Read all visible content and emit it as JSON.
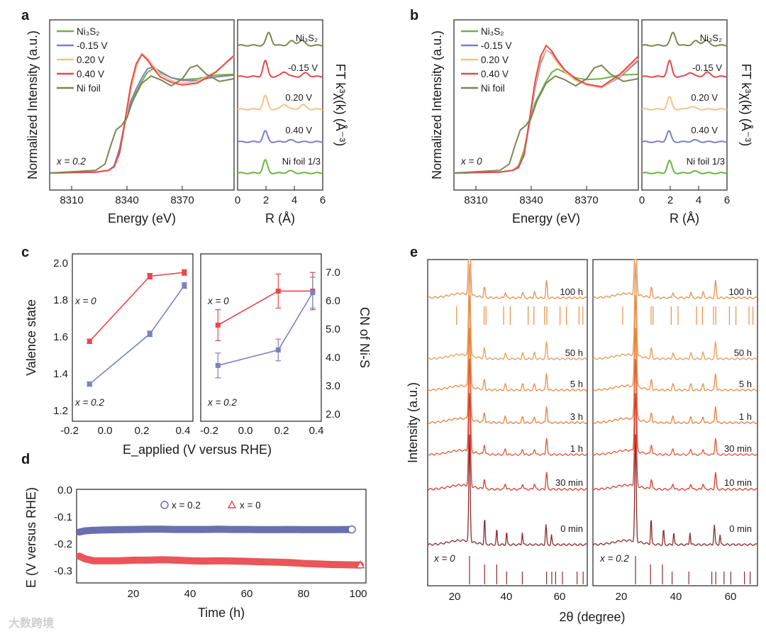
{
  "panel_labels": {
    "a": "a",
    "b": "b",
    "c": "c",
    "d": "d",
    "e": "e"
  },
  "watermark": "大数跨境",
  "chart_data": [
    {
      "id": "a_xanes",
      "type": "line",
      "xlabel": "Energy (eV)",
      "ylabel": "Normalized Intensity (a.u.)",
      "xticks": [
        "8310",
        "8340",
        "8370"
      ],
      "xlim": [
        8300,
        8400
      ],
      "annotation": "x = 0.2",
      "series": [
        {
          "name": "Ni₃S₂",
          "color": "#6cb43f",
          "x": [
            8300,
            8325,
            8332,
            8335,
            8338,
            8341,
            8344,
            8347,
            8350,
            8353,
            8356,
            8360,
            8366,
            8372,
            8380,
            8390,
            8400
          ],
          "y": [
            0.0,
            0.01,
            0.03,
            0.08,
            0.25,
            0.55,
            0.78,
            0.9,
            1.02,
            1.12,
            1.16,
            1.12,
            1.06,
            1.04,
            1.05,
            1.09,
            1.1
          ]
        },
        {
          "name": "-0.15 V",
          "color": "#7b80c2",
          "x": [
            8300,
            8325,
            8332,
            8335,
            8338,
            8341,
            8344,
            8347,
            8350,
            8353,
            8356,
            8360,
            8366,
            8372,
            8380,
            8390,
            8400
          ],
          "y": [
            0.0,
            0.01,
            0.03,
            0.08,
            0.28,
            0.58,
            0.8,
            0.94,
            1.06,
            1.16,
            1.18,
            1.13,
            1.06,
            1.03,
            1.03,
            1.07,
            1.09
          ]
        },
        {
          "name": "0.20 V",
          "color": "#f5c28a",
          "x": [
            8300,
            8325,
            8332,
            8335,
            8338,
            8341,
            8344,
            8347,
            8350,
            8353,
            8356,
            8360,
            8366,
            8372,
            8380,
            8390,
            8400
          ],
          "y": [
            0.0,
            0.01,
            0.03,
            0.07,
            0.22,
            0.56,
            0.92,
            1.18,
            1.33,
            1.28,
            1.2,
            1.1,
            1.03,
            1.0,
            1.02,
            1.13,
            1.3
          ]
        },
        {
          "name": "0.40 V",
          "color": "#e8474c",
          "x": [
            8300,
            8325,
            8332,
            8335,
            8338,
            8341,
            8344,
            8347,
            8350,
            8353,
            8356,
            8360,
            8366,
            8372,
            8380,
            8390,
            8400
          ],
          "y": [
            0.0,
            0.01,
            0.03,
            0.07,
            0.23,
            0.6,
            0.98,
            1.22,
            1.32,
            1.26,
            1.17,
            1.07,
            1.01,
            0.98,
            1.0,
            1.12,
            1.31
          ]
        },
        {
          "name": "Ni foil",
          "color": "#7f8451",
          "x": [
            8300,
            8325,
            8330,
            8333,
            8336,
            8339,
            8342,
            8345,
            8350,
            8355,
            8360,
            8366,
            8372,
            8376,
            8380,
            8385,
            8392,
            8400
          ],
          "y": [
            0.0,
            0.03,
            0.1,
            0.3,
            0.48,
            0.53,
            0.62,
            0.8,
            1.0,
            1.08,
            1.04,
            0.97,
            1.05,
            1.17,
            1.2,
            1.1,
            1.02,
            1.05
          ]
        }
      ]
    },
    {
      "id": "a_ft",
      "type": "line",
      "xlabel": "R (Å)",
      "ylabel": "FT k³χ(k) (Å⁻³)",
      "xticks": [
        "0",
        "2",
        "4",
        "6"
      ],
      "xlim": [
        0,
        6
      ],
      "series": [
        {
          "name": "Ni₃S₂",
          "color": "#6cb43f",
          "offset": 4,
          "peaks": [
            [
              1.95,
              0.9,
              0.22
            ],
            [
              3.7,
              0.15,
              0.3
            ]
          ]
        },
        {
          "name": "-0.15 V",
          "color": "#7b80c2",
          "offset": 3,
          "peaks": [
            [
              1.95,
              0.75,
              0.22
            ],
            [
              3.7,
              0.12,
              0.3
            ]
          ]
        },
        {
          "name": "0.20 V",
          "color": "#f5c28a",
          "offset": 2,
          "peaks": [
            [
              1.95,
              0.95,
              0.22
            ],
            [
              3.3,
              0.35,
              0.3
            ],
            [
              4.6,
              0.3,
              0.3
            ]
          ]
        },
        {
          "name": "0.40 V",
          "color": "#e8474c",
          "offset": 1,
          "peaks": [
            [
              1.95,
              1.1,
              0.22
            ],
            [
              3.3,
              0.35,
              0.3
            ],
            [
              4.8,
              0.25,
              0.3
            ]
          ]
        },
        {
          "name": "Ni foil 1/3",
          "color": "#7f8451",
          "offset": 0,
          "peaks": [
            [
              2.2,
              0.9,
              0.25
            ],
            [
              3.8,
              0.3,
              0.3
            ],
            [
              4.5,
              0.35,
              0.3
            ]
          ]
        }
      ]
    },
    {
      "id": "b_xanes",
      "type": "line",
      "xlabel": "Energy (eV)",
      "ylabel": "Normalized Intensity (a.u.)",
      "xticks": [
        "8310",
        "8340",
        "8370"
      ],
      "xlim": [
        8300,
        8400
      ],
      "annotation": "x = 0",
      "series": [
        {
          "name": "Ni₃S₂",
          "color": "#6cb43f",
          "x": [
            8300,
            8325,
            8332,
            8335,
            8338,
            8341,
            8344,
            8347,
            8350,
            8353,
            8356,
            8360,
            8366,
            8372,
            8380,
            8390,
            8400
          ],
          "y": [
            0.0,
            0.01,
            0.03,
            0.08,
            0.25,
            0.55,
            0.78,
            0.9,
            1.02,
            1.12,
            1.16,
            1.12,
            1.06,
            1.04,
            1.05,
            1.09,
            1.1
          ]
        },
        {
          "name": "-0.15 V",
          "color": "#7b80c2",
          "x": [
            8300,
            8325,
            8332,
            8335,
            8338,
            8341,
            8344,
            8347,
            8350,
            8353,
            8356,
            8360,
            8366,
            8372,
            8380,
            8390,
            8400
          ],
          "y": [
            0.0,
            0.01,
            0.03,
            0.06,
            0.2,
            0.55,
            0.95,
            1.22,
            1.37,
            1.33,
            1.24,
            1.14,
            1.04,
            0.98,
            0.95,
            1.07,
            1.25
          ]
        },
        {
          "name": "0.20 V",
          "color": "#f5c28a",
          "x": [
            8300,
            8325,
            8332,
            8335,
            8338,
            8341,
            8344,
            8347,
            8350,
            8353,
            8356,
            8360,
            8366,
            8372,
            8380,
            8390,
            8400
          ],
          "y": [
            0.0,
            0.01,
            0.03,
            0.06,
            0.2,
            0.58,
            0.98,
            1.25,
            1.37,
            1.32,
            1.23,
            1.13,
            1.03,
            0.98,
            0.95,
            1.08,
            1.27
          ]
        },
        {
          "name": "0.40 V",
          "color": "#e8474c",
          "x": [
            8300,
            8325,
            8332,
            8335,
            8338,
            8341,
            8344,
            8347,
            8350,
            8353,
            8356,
            8360,
            8366,
            8372,
            8380,
            8390,
            8400
          ],
          "y": [
            0.0,
            0.01,
            0.03,
            0.06,
            0.2,
            0.6,
            1.02,
            1.3,
            1.42,
            1.36,
            1.26,
            1.15,
            1.05,
            0.99,
            0.96,
            1.1,
            1.3
          ]
        },
        {
          "name": "Ni foil",
          "color": "#7f8451",
          "x": [
            8300,
            8325,
            8330,
            8333,
            8336,
            8339,
            8342,
            8345,
            8350,
            8355,
            8360,
            8366,
            8372,
            8376,
            8380,
            8385,
            8392,
            8400
          ],
          "y": [
            0.0,
            0.03,
            0.1,
            0.3,
            0.48,
            0.53,
            0.62,
            0.8,
            1.0,
            1.08,
            1.04,
            0.97,
            1.05,
            1.17,
            1.2,
            1.1,
            1.02,
            1.05
          ]
        }
      ]
    },
    {
      "id": "b_ft",
      "type": "line",
      "xlabel": "R (Å)",
      "ylabel": "FT k³χ(k) (Å⁻³)",
      "xticks": [
        "0",
        "2",
        "4",
        "6"
      ],
      "xlim": [
        0,
        6
      ],
      "series": [
        {
          "name": "Ni₃S₂",
          "color": "#6cb43f",
          "offset": 4,
          "peaks": [
            [
              1.95,
              0.85,
              0.22
            ],
            [
              3.7,
              0.12,
              0.3
            ]
          ]
        },
        {
          "name": "-0.15 V",
          "color": "#7b80c2",
          "offset": 3,
          "peaks": [
            [
              1.9,
              0.75,
              0.22
            ],
            [
              3.7,
              0.12,
              0.3
            ]
          ]
        },
        {
          "name": "0.20 V",
          "color": "#f5c28a",
          "offset": 2,
          "peaks": [
            [
              1.95,
              0.85,
              0.22
            ],
            [
              3.5,
              0.2,
              0.3
            ]
          ]
        },
        {
          "name": "0.40 V",
          "color": "#e8474c",
          "offset": 1,
          "peaks": [
            [
              1.95,
              1.1,
              0.22
            ],
            [
              3.4,
              0.3,
              0.3
            ],
            [
              4.6,
              0.3,
              0.3
            ]
          ]
        },
        {
          "name": "Ni foil 1/3",
          "color": "#7f8451",
          "offset": 0,
          "peaks": [
            [
              2.2,
              0.9,
              0.25
            ],
            [
              3.8,
              0.3,
              0.3
            ],
            [
              4.5,
              0.35,
              0.3
            ]
          ]
        }
      ]
    },
    {
      "id": "c_valence",
      "type": "scatter",
      "xlabel": "E_applied (V versus RHE)",
      "ylabel": "Valence state",
      "xticks": [
        "-0.2",
        "0.0",
        "0.2",
        "0.4"
      ],
      "xlim": [
        -0.25,
        0.45
      ],
      "yticks": [
        "1.2",
        "1.4",
        "1.6",
        "1.8",
        "2.0"
      ],
      "ylim": [
        1.15,
        2.05
      ],
      "annotations": [
        "x = 0",
        "x = 0.2"
      ],
      "series": [
        {
          "name": "x = 0",
          "color": "#e8474c",
          "x": [
            -0.15,
            0.2,
            0.4
          ],
          "y": [
            1.58,
            1.93,
            1.95
          ],
          "err": [
            0.012,
            0.015,
            0.015
          ]
        },
        {
          "name": "x = 0.2",
          "color": "#7b80c2",
          "x": [
            -0.15,
            0.2,
            0.4
          ],
          "y": [
            1.35,
            1.62,
            1.88
          ],
          "err": [
            0.012,
            0.015,
            0.015
          ]
        }
      ]
    },
    {
      "id": "c_cn",
      "type": "scatter",
      "xlabel": "E_applied (V versus RHE)",
      "ylabel": "CN of Ni-S",
      "xticks": [
        "-0.2",
        "0.0",
        "0.2",
        "0.4"
      ],
      "xlim": [
        -0.25,
        0.45
      ],
      "yticks": [
        "2.0",
        "3.0",
        "4.0",
        "5.0",
        "6.0",
        "7.0"
      ],
      "ylim": [
        1.8,
        7.2
      ],
      "annotations": [
        "x = 0",
        "x = 0.2"
      ],
      "series": [
        {
          "name": "x = 0",
          "color": "#e8474c",
          "x": [
            -0.15,
            0.2,
            0.4
          ],
          "y": [
            4.9,
            6.0,
            6.0
          ],
          "err": [
            0.5,
            0.55,
            0.6
          ]
        },
        {
          "name": "x = 0.2",
          "color": "#7b80c2",
          "x": [
            -0.15,
            0.2,
            0.4
          ],
          "y": [
            3.6,
            4.1,
            5.95
          ],
          "err": [
            0.4,
            0.35,
            0.5
          ]
        }
      ]
    },
    {
      "id": "d_stability",
      "type": "scatter",
      "xlabel": "Time (h)",
      "ylabel": "E (V versus RHE)",
      "xticks": [
        "20",
        "40",
        "60",
        "80",
        "100"
      ],
      "xlim": [
        0,
        102
      ],
      "yticks": [
        "0.0",
        "-0.1",
        "-0.2",
        "-0.3"
      ],
      "ylim": [
        -0.345,
        0.005
      ],
      "series": [
        {
          "name": "x = 0.2",
          "color": "#5f63a8",
          "marker": "circle",
          "x": [
            1,
            3,
            6,
            10,
            15,
            20,
            25,
            30,
            35,
            40,
            45,
            50,
            55,
            60,
            65,
            70,
            75,
            80,
            85,
            90,
            97
          ],
          "y": [
            -0.155,
            -0.15,
            -0.148,
            -0.147,
            -0.146,
            -0.145,
            -0.144,
            -0.144,
            -0.145,
            -0.145,
            -0.145,
            -0.144,
            -0.145,
            -0.145,
            -0.146,
            -0.146,
            -0.145,
            -0.146,
            -0.146,
            -0.146,
            -0.145
          ]
        },
        {
          "name": "x = 0",
          "color": "#e8474c",
          "marker": "triangle",
          "x": [
            1,
            3,
            6,
            10,
            15,
            20,
            25,
            30,
            35,
            40,
            45,
            50,
            55,
            60,
            65,
            70,
            75,
            80,
            85,
            90,
            95,
            100
          ],
          "y": [
            -0.245,
            -0.255,
            -0.262,
            -0.262,
            -0.262,
            -0.26,
            -0.26,
            -0.258,
            -0.26,
            -0.262,
            -0.263,
            -0.262,
            -0.263,
            -0.264,
            -0.266,
            -0.267,
            -0.269,
            -0.272,
            -0.274,
            -0.276,
            -0.277,
            -0.278
          ]
        }
      ]
    },
    {
      "id": "e_xrd",
      "type": "line",
      "xlabel": "2θ (degree)",
      "ylabel": "Intensity (a.u.)",
      "xticks": [
        "20",
        "40",
        "60"
      ],
      "xlim": [
        10,
        68
      ],
      "panels": [
        {
          "annotation": "x = 0",
          "traces": [
            {
              "label": "100 h",
              "color": "#e88f4a"
            },
            {
              "label": "50 h",
              "color": "#ea9a55"
            },
            {
              "label": "5 h",
              "color": "#e98c45"
            },
            {
              "label": "3 h",
              "color": "#e87f3c"
            },
            {
              "label": "1 h",
              "color": "#df5a35"
            },
            {
              "label": "30 min",
              "color": "#d63d33"
            },
            {
              "label": "0 min",
              "color": "#8c2a2a"
            }
          ],
          "reference_top": [
            20.5,
            30.5,
            31.2,
            37.6,
            40.0,
            46.5,
            48.6,
            52.5,
            53.3,
            58.1,
            60.4,
            65.0,
            66.4
          ],
          "reference_bottom": [
            25.2,
            30.7,
            35.1,
            38.7,
            44.4,
            53.2,
            55.1,
            56.5,
            59.0,
            64.3,
            66.5
          ]
        },
        {
          "annotation": "x = 0.2",
          "traces": [
            {
              "label": "100 h",
              "color": "#e88f4a"
            },
            {
              "label": "50 h",
              "color": "#ea9a55"
            },
            {
              "label": "5 h",
              "color": "#e98c45"
            },
            {
              "label": "1 h",
              "color": "#e87f3c"
            },
            {
              "label": "30 min",
              "color": "#df5a35"
            },
            {
              "label": "10 min",
              "color": "#d63d33"
            },
            {
              "label": "0 min",
              "color": "#8c2a2a"
            }
          ],
          "reference_top": [
            20.5,
            30.5,
            31.2,
            37.6,
            40.0,
            46.5,
            48.6,
            52.5,
            53.3,
            58.1,
            60.4,
            65.0,
            66.4
          ],
          "reference_bottom": [
            25.0,
            30.3,
            34.5,
            37.9,
            43.8,
            51.9,
            53.3,
            56.2,
            58.6,
            63.4,
            65.4
          ]
        }
      ]
    }
  ]
}
